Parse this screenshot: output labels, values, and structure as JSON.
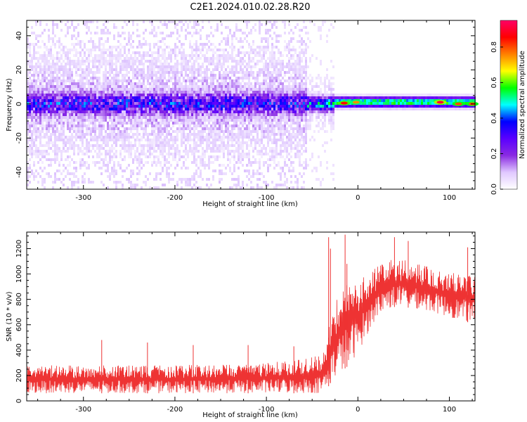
{
  "figure_title": "C2E1.2024.010.02.28.R20",
  "chart_data": [
    {
      "type": "heatmap",
      "title": "",
      "xlabel": "Height of straight line (km)",
      "ylabel": "Frequency (Hz)",
      "xlim": [
        -362,
        128
      ],
      "ylim": [
        -50,
        49
      ],
      "x_ticks": [
        -300,
        -200,
        -100,
        0,
        100
      ],
      "x_tick_labels": [
        "-300",
        "-200",
        "-100",
        "0",
        "100"
      ],
      "y_ticks": [
        -40,
        -20,
        0,
        20,
        40
      ],
      "y_tick_labels": [
        "-40",
        "-20",
        "0",
        "20",
        "40"
      ],
      "grid": false,
      "colorbar": {
        "label": "Normalized spectral amplitude",
        "range": [
          0,
          0.95
        ],
        "ticks": [
          0.0,
          0.2,
          0.4,
          0.6,
          0.8
        ],
        "tick_labels": [
          "0.0",
          "0.2",
          "0.4",
          "0.6",
          "0.8"
        ],
        "colormap": [
          "#ffffff",
          "#e0c8ff",
          "#8a2be2",
          "#5a00ff",
          "#0000ff",
          "#00ffff",
          "#00ff00",
          "#ffff00",
          "#ff8000",
          "#ff0000",
          "#ff0066"
        ]
      },
      "regions": [
        {
          "x_range": [
            -362,
            -55
          ],
          "freq_center": 0,
          "core_halfwidth": 5,
          "halo_halfwidth": 20,
          "sparse_halfwidth": 50,
          "peak_amplitude": 0.35,
          "pattern": "broadband noise"
        },
        {
          "x_range": [
            -55,
            -25
          ],
          "freq_center": 0,
          "core_halfwidth": 3,
          "halo_halfwidth": 10,
          "peak_amplitude": 0.5,
          "pattern": "narrowing transition"
        },
        {
          "x_range": [
            -25,
            128
          ],
          "freq_center": 1,
          "core_halfwidth": 2,
          "halo_halfwidth": 3,
          "peak_amplitude": 0.95,
          "pattern": "narrow band"
        }
      ],
      "hotspots": [
        {
          "x": -15,
          "freq": 0.5,
          "amplitude": 0.85
        },
        {
          "x": -2,
          "freq": 1,
          "amplitude": 0.75
        },
        {
          "x": 90,
          "freq": 1,
          "amplitude": 0.9
        },
        {
          "x": 110,
          "freq": 0,
          "amplitude": 0.8
        },
        {
          "x": 125,
          "freq": 0,
          "amplitude": 0.8
        }
      ]
    },
    {
      "type": "line",
      "title": "",
      "xlabel": "Height of straight line (km)",
      "ylabel": "SNR (10 * v/v)",
      "xlim": [
        -362,
        128
      ],
      "ylim": [
        0,
        1330
      ],
      "x_ticks": [
        -300,
        -200,
        -100,
        0,
        100
      ],
      "x_tick_labels": [
        "-300",
        "-200",
        "-100",
        "0",
        "100"
      ],
      "y_ticks": [
        0,
        200,
        400,
        600,
        800,
        1000,
        1200
      ],
      "y_tick_labels": [
        "0",
        "200",
        "400",
        "600",
        "800",
        "1000",
        "1200"
      ],
      "grid": false,
      "color": "#ee3333",
      "trend": {
        "x": [
          -362,
          -300,
          -200,
          -100,
          -60,
          -40,
          -35,
          -30,
          -20,
          -10,
          0,
          10,
          20,
          30,
          40,
          50,
          60,
          70,
          80,
          90,
          100,
          110,
          120,
          128
        ],
        "y_low": [
          60,
          60,
          60,
          60,
          60,
          60,
          80,
          140,
          220,
          280,
          380,
          520,
          650,
          720,
          740,
          740,
          730,
          720,
          700,
          680,
          660,
          640,
          620,
          600
        ],
        "y_high": [
          280,
          280,
          280,
          300,
          330,
          360,
          450,
          640,
          880,
          980,
          960,
          1000,
          1050,
          1100,
          1120,
          1110,
          1090,
          1070,
          1050,
          1030,
          1020,
          1010,
          1000,
          990
        ]
      },
      "spikes": [
        {
          "x": -32,
          "y": 1290
        },
        {
          "x": -30,
          "y": 1200
        },
        {
          "x": -14,
          "y": 1310
        },
        {
          "x": -12,
          "y": 1080
        },
        {
          "x": -70,
          "y": 430
        },
        {
          "x": -280,
          "y": 480
        },
        {
          "x": -180,
          "y": 440
        },
        {
          "x": -230,
          "y": 460
        },
        {
          "x": -120,
          "y": 440
        },
        {
          "x": 40,
          "y": 1290
        },
        {
          "x": 55,
          "y": 1260
        },
        {
          "x": 120,
          "y": 1210
        }
      ]
    }
  ]
}
